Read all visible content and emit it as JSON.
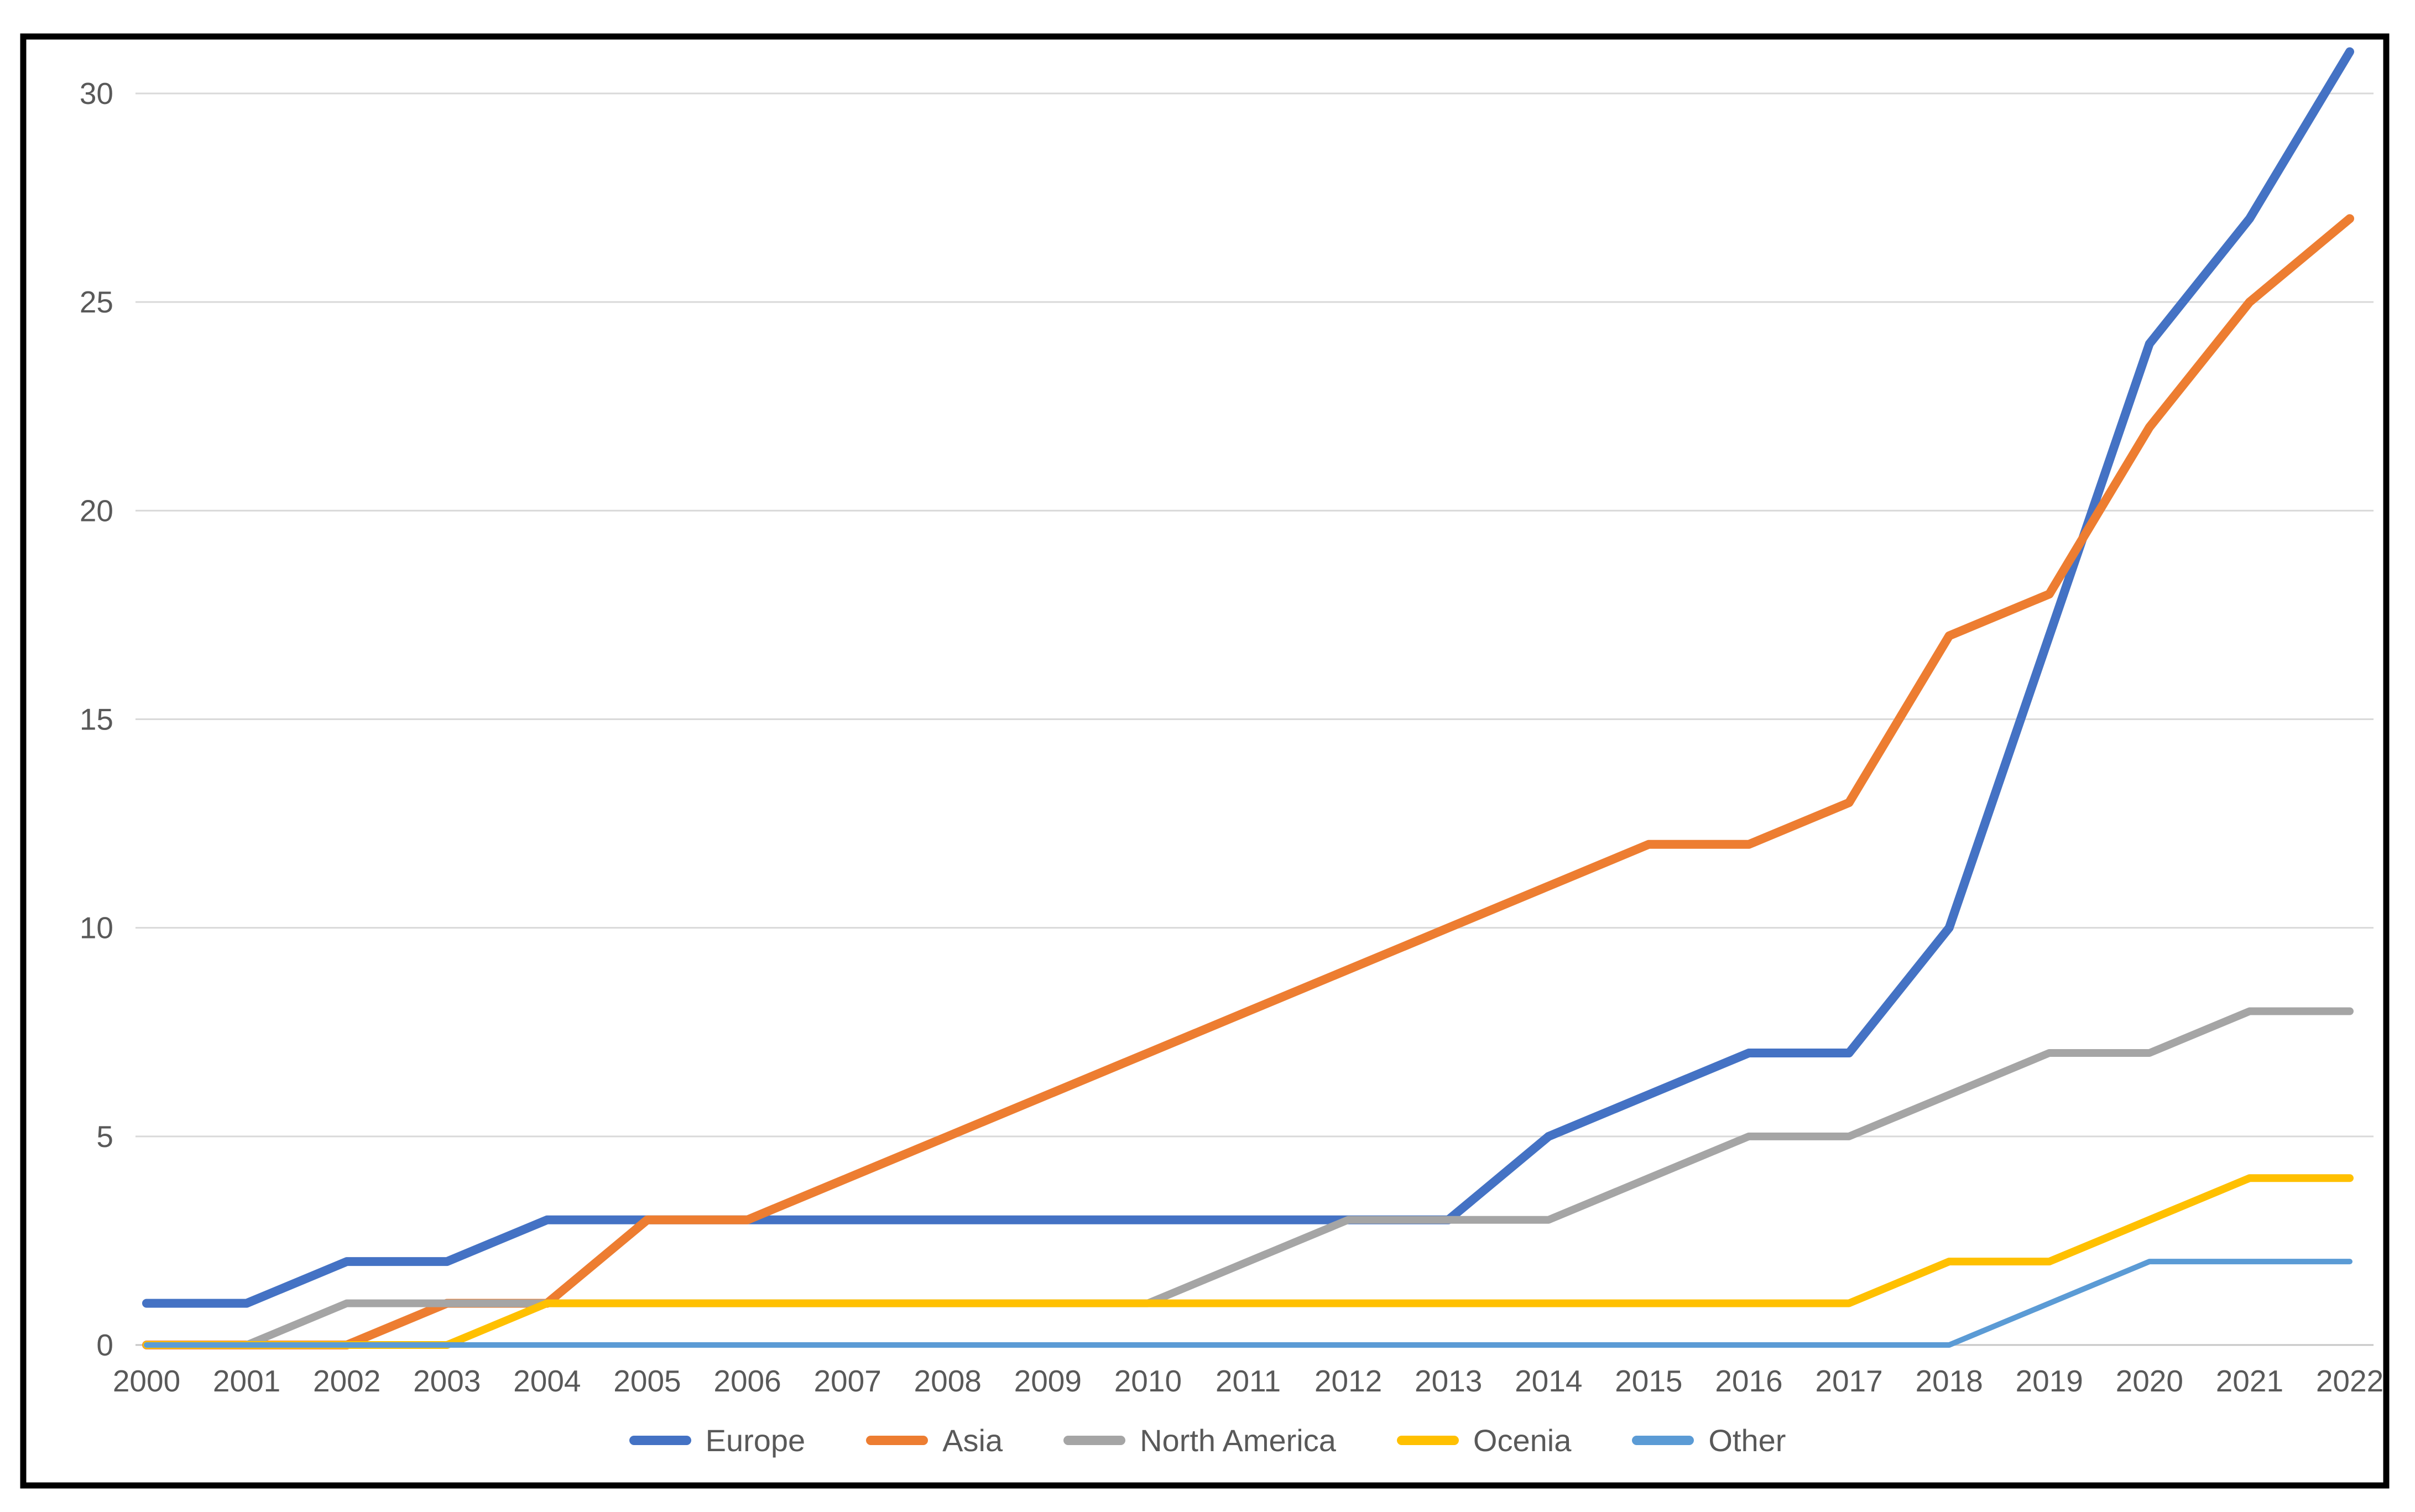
{
  "chart_data": {
    "type": "line",
    "title": "",
    "xlabel": "",
    "ylabel": "",
    "categories": [
      "2000",
      "2001",
      "2002",
      "2003",
      "2004",
      "2005",
      "2006",
      "2007",
      "2008",
      "2009",
      "2010",
      "2011",
      "2012",
      "2013",
      "2014",
      "2015",
      "2016",
      "2017",
      "2018",
      "2019",
      "2020",
      "2021",
      "2022"
    ],
    "series": [
      {
        "name": "Europe",
        "color": "#4472C4",
        "values": [
          1,
          1,
          2,
          2,
          3,
          3,
          3,
          3,
          3,
          3,
          3,
          3,
          3,
          3,
          5,
          6,
          7,
          7,
          10,
          17,
          24,
          27,
          31
        ]
      },
      {
        "name": "Asia",
        "color": "#ED7D31",
        "values": [
          0,
          0,
          0,
          1,
          1,
          3,
          3,
          4,
          5,
          6,
          7,
          8,
          9,
          10,
          11,
          12,
          12,
          13,
          17,
          18,
          22,
          25,
          27
        ]
      },
      {
        "name": "North America",
        "color": "#A5A5A5",
        "values": [
          0,
          0,
          1,
          1,
          1,
          1,
          1,
          1,
          1,
          1,
          1,
          2,
          3,
          3,
          3,
          4,
          5,
          5,
          6,
          7,
          7,
          8,
          8
        ]
      },
      {
        "name": "Ocenia",
        "color": "#FFC000",
        "values": [
          0,
          0,
          0,
          0,
          1,
          1,
          1,
          1,
          1,
          1,
          1,
          1,
          1,
          1,
          1,
          1,
          1,
          1,
          2,
          2,
          3,
          4,
          4
        ]
      },
      {
        "name": "Other",
        "color": "#5B9BD5",
        "values": [
          0,
          0,
          0,
          0,
          0,
          0,
          0,
          0,
          0,
          0,
          0,
          0,
          0,
          0,
          0,
          0,
          0,
          0,
          0,
          1,
          2,
          2,
          2
        ]
      }
    ],
    "ylim": [
      0,
      30
    ],
    "yticks": [
      "0",
      "5",
      "10",
      "15",
      "20",
      "25",
      "30"
    ],
    "ytick_interval": 5,
    "grid": true,
    "legend_position": "bottom",
    "colors": {
      "tick_label": "#595959",
      "gridline": "#D9D9D9",
      "axis_line": "#C6C6C6",
      "border": "#000000",
      "background": "#FFFFFF"
    }
  }
}
